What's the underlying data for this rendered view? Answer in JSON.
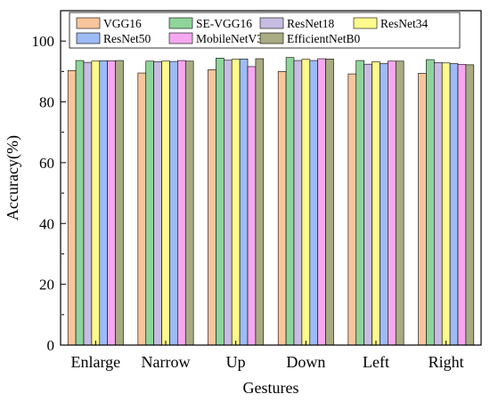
{
  "chart_data": {
    "type": "bar",
    "title": "",
    "xlabel": "Gestures",
    "ylabel": "Accuracy(%)",
    "ylim": [
      0,
      110
    ],
    "yticks": [
      0,
      20,
      40,
      60,
      80,
      100
    ],
    "grid": false,
    "legend_position": "top",
    "categories": [
      "Enlarge",
      "Narrow",
      "Up",
      "Down",
      "Left",
      "Right"
    ],
    "series": [
      {
        "name": "VGG16",
        "color": "#f8c59c",
        "values": [
          90.3,
          89.5,
          90.6,
          90.0,
          89.2,
          89.4
        ]
      },
      {
        "name": "SE-VGG16",
        "color": "#8fd49a",
        "values": [
          93.6,
          93.4,
          94.4,
          94.6,
          93.6,
          93.9
        ]
      },
      {
        "name": "ResNet18",
        "color": "#c7bce2",
        "values": [
          93.0,
          93.2,
          93.7,
          93.6,
          92.4,
          92.9
        ]
      },
      {
        "name": "ResNet34",
        "color": "#fffa8c",
        "values": [
          93.4,
          93.4,
          94.0,
          94.0,
          93.2,
          92.8
        ]
      },
      {
        "name": "ResNet50",
        "color": "#9dbbf4",
        "values": [
          93.5,
          93.3,
          94.1,
          93.6,
          92.6,
          92.6
        ]
      },
      {
        "name": "MobileNetV3",
        "color": "#f5a8f0",
        "values": [
          93.5,
          93.6,
          91.6,
          94.2,
          93.4,
          92.3
        ]
      },
      {
        "name": "EfficientNetB0",
        "color": "#a9ab82",
        "values": [
          93.6,
          93.4,
          94.2,
          94.1,
          93.4,
          92.2
        ]
      }
    ]
  }
}
